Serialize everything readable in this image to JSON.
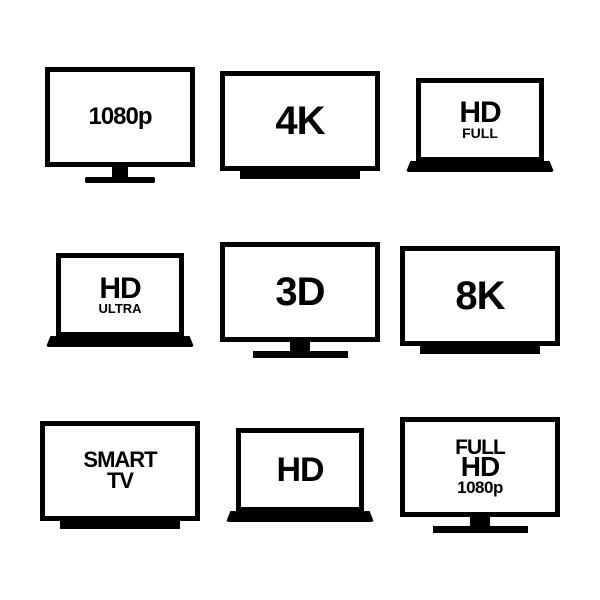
{
  "grid": {
    "background_color": "#ffffff",
    "stroke_color": "#000000",
    "cols": 3,
    "rows": 3,
    "items": [
      {
        "device": "monitor",
        "label": "1080p",
        "font_size": 24
      },
      {
        "device": "tvflat",
        "label": "4K",
        "font_size": 40
      },
      {
        "device": "laptop",
        "label": "HD",
        "sub": "FULL",
        "font_size": 30,
        "sub_size": 14
      },
      {
        "device": "laptop",
        "label": "HD",
        "sub": "ULTRA",
        "font_size": 30,
        "sub_size": 13
      },
      {
        "device": "tv",
        "label": "3D",
        "font_size": 40
      },
      {
        "device": "tvflat",
        "label": "8K",
        "font_size": 40
      },
      {
        "device": "tvflat",
        "label": "SMART",
        "sub": "TV",
        "font_size": 22,
        "sub_size": 22,
        "stacked_equal": true
      },
      {
        "device": "laptop",
        "label": "HD",
        "font_size": 34
      },
      {
        "device": "tv",
        "label": "FULL",
        "mid": "HD",
        "sub": "1080p",
        "font_size": 21,
        "mid_size": 28,
        "sub_size": 17,
        "triple": true
      }
    ]
  }
}
